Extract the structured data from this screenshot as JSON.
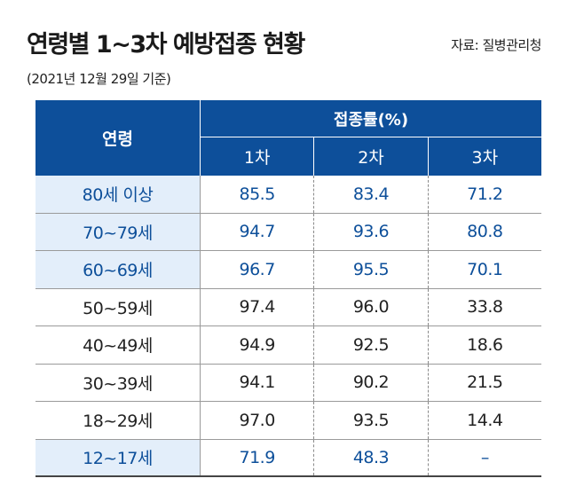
{
  "header": {
    "title": "연령별 1~3차 예방접종 현황",
    "source": "자료: 질병관리청",
    "subtitle": "(2021년 12월 29일 기준)"
  },
  "table": {
    "age_header": "연령",
    "group_header": "접종률(%)",
    "dose_headers": [
      "1차",
      "2차",
      "3차"
    ],
    "rows": [
      {
        "age": "80세 이상",
        "v1": "85.5",
        "v2": "83.4",
        "v3": "71.2",
        "highlight": true
      },
      {
        "age": "70~79세",
        "v1": "94.7",
        "v2": "93.6",
        "v3": "80.8",
        "highlight": true
      },
      {
        "age": "60~69세",
        "v1": "96.7",
        "v2": "95.5",
        "v3": "70.1",
        "highlight": true
      },
      {
        "age": "50~59세",
        "v1": "97.4",
        "v2": "96.0",
        "v3": "33.8",
        "highlight": false
      },
      {
        "age": "40~49세",
        "v1": "94.9",
        "v2": "92.5",
        "v3": "18.6",
        "highlight": false
      },
      {
        "age": "30~39세",
        "v1": "94.1",
        "v2": "90.2",
        "v3": "21.5",
        "highlight": false
      },
      {
        "age": "18~29세",
        "v1": "97.0",
        "v2": "93.5",
        "v3": "14.4",
        "highlight": false
      },
      {
        "age": "12~17세",
        "v1": "71.9",
        "v2": "48.3",
        "v3": "–",
        "highlight": true
      }
    ]
  },
  "colors": {
    "header_bg": "#0d4f9a",
    "highlight_text": "#0d4f9a",
    "highlight_age_bg": "#e3eefa"
  }
}
